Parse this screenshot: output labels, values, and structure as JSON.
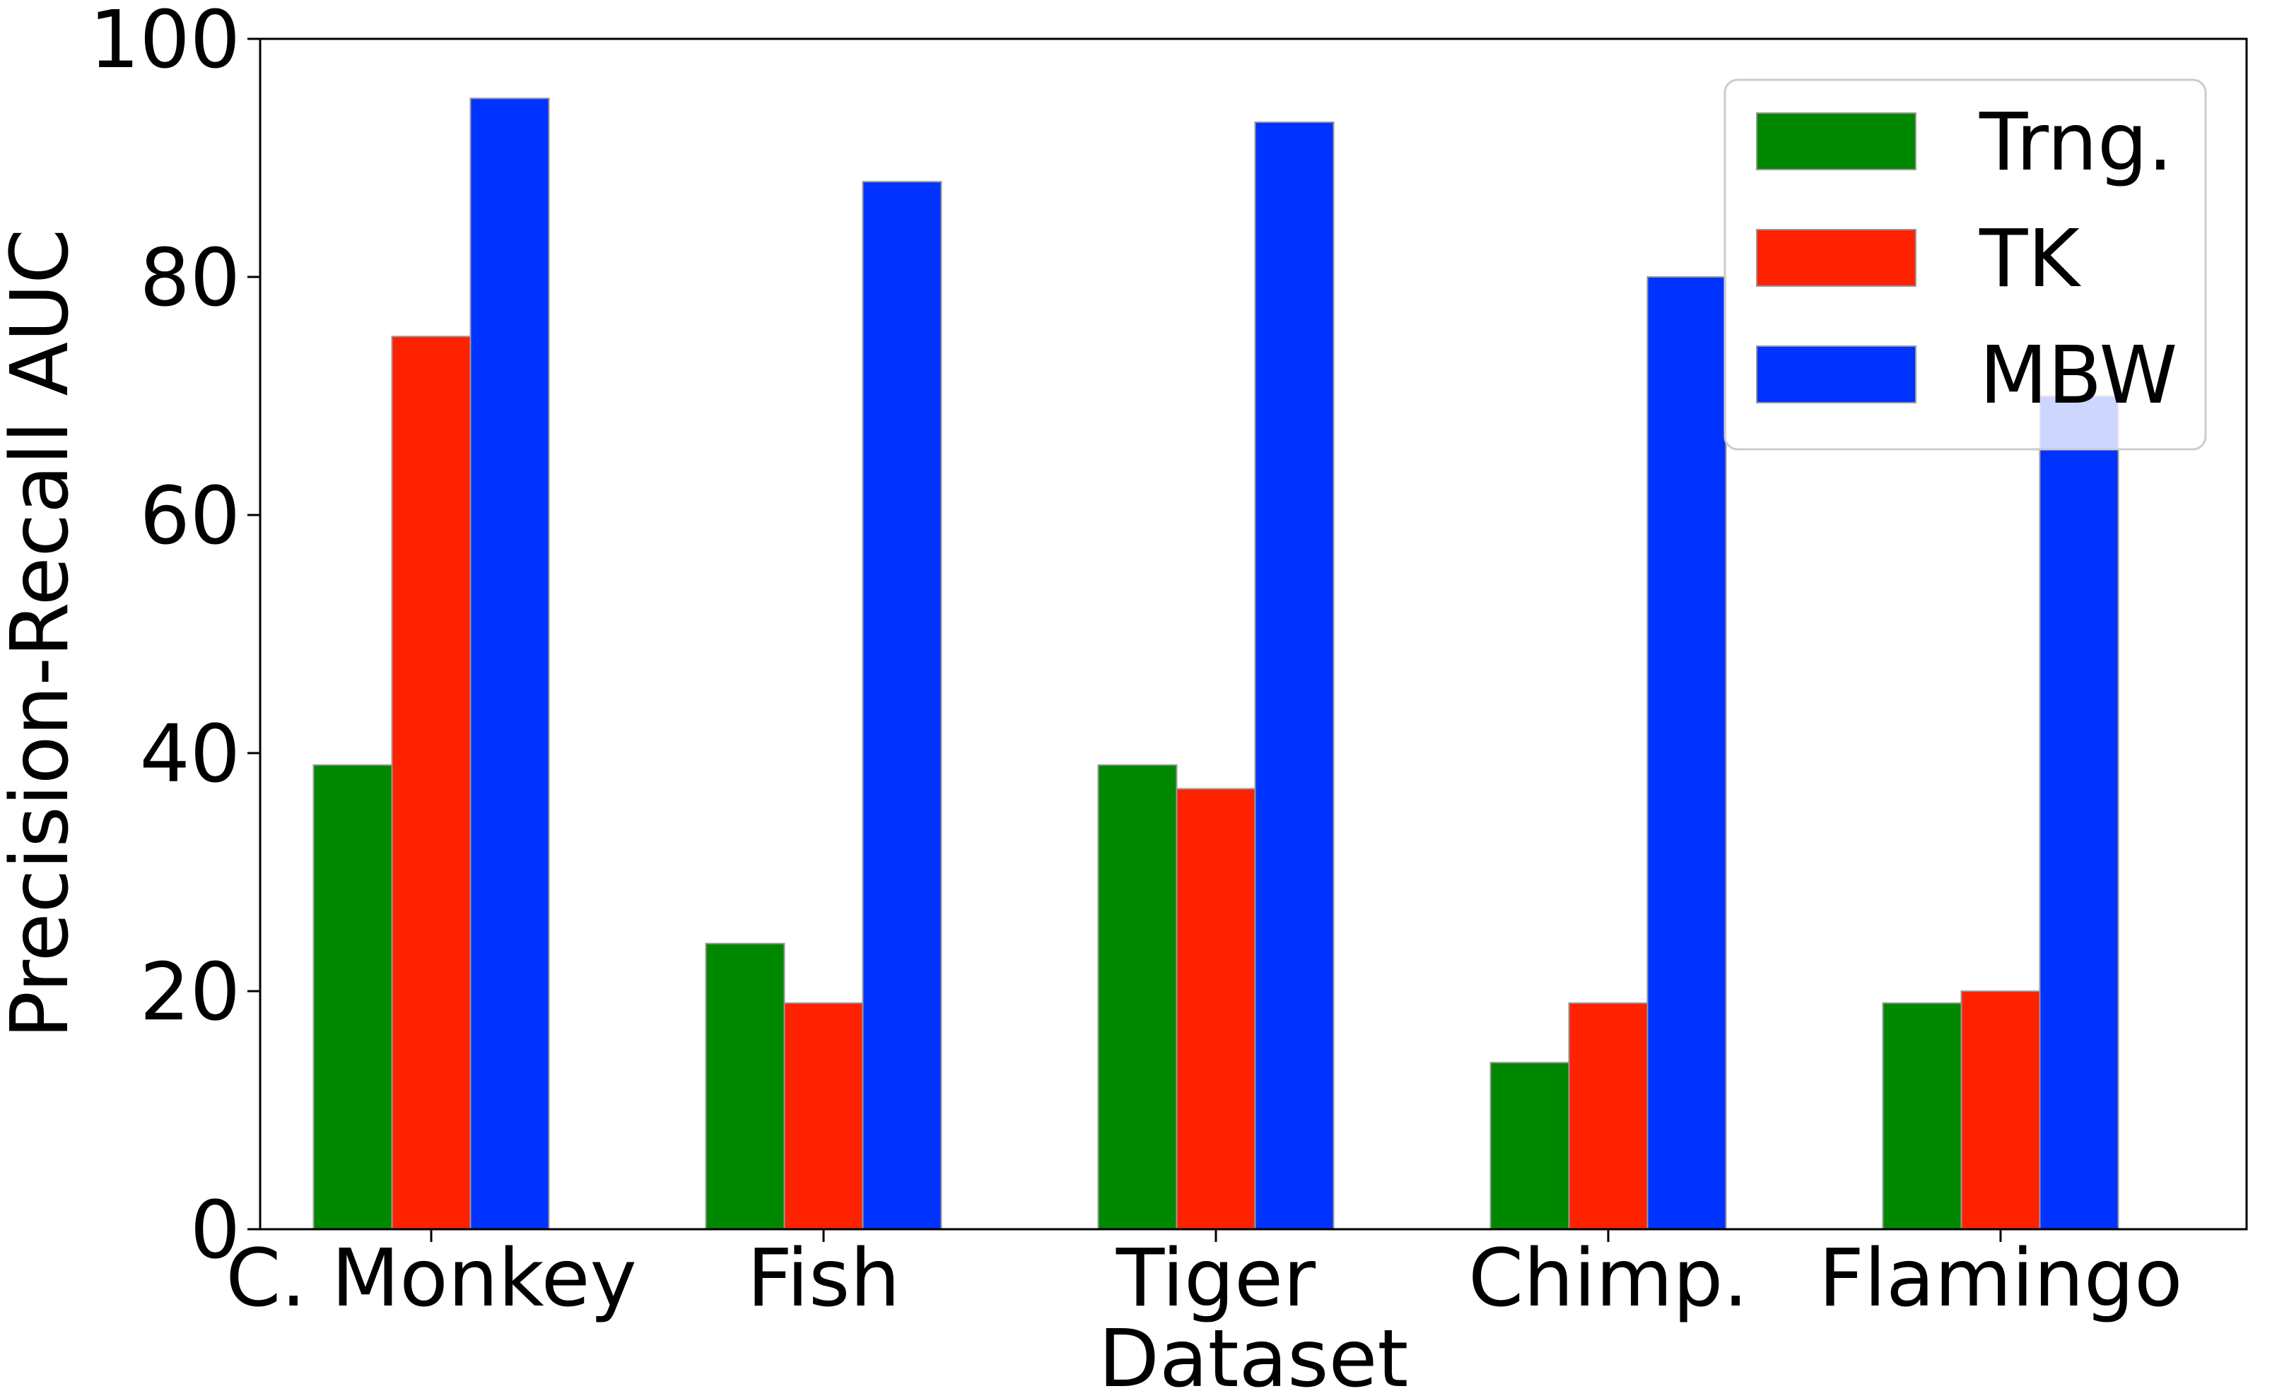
{
  "chart_data": {
    "type": "bar",
    "categories": [
      "C. Monkey",
      "Fish",
      "Tiger",
      "Chimp.",
      "Flamingo"
    ],
    "series": [
      {
        "name": "Trng.",
        "color": "#008800",
        "values": [
          39,
          24,
          39,
          14,
          19
        ]
      },
      {
        "name": "TK",
        "color": "#ff2200",
        "values": [
          75,
          19,
          37,
          19,
          20
        ]
      },
      {
        "name": "MBW",
        "color": "#0033ff",
        "values": [
          95,
          88,
          93,
          80,
          70
        ]
      }
    ],
    "xlabel": "Dataset",
    "ylabel": "Precision-Recall AUC",
    "ylim": [
      0,
      100
    ],
    "yticks": [
      0,
      20,
      40,
      60,
      80,
      100
    ],
    "grid": false,
    "legend_position": "top-right"
  }
}
